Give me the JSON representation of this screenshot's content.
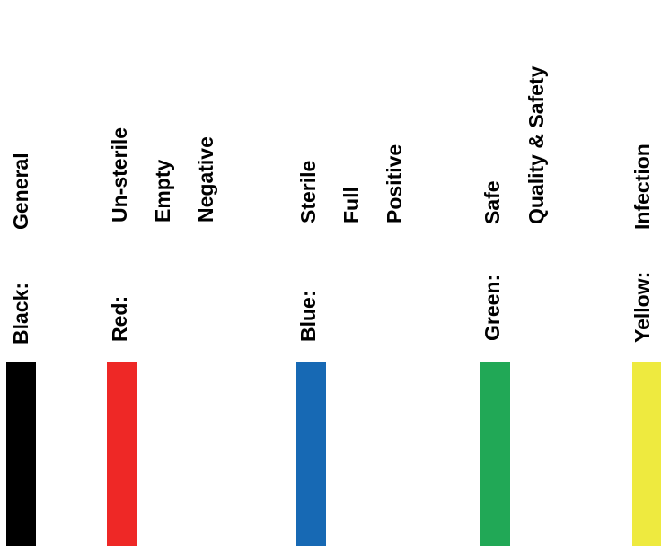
{
  "colors": [
    {
      "label": "Black:",
      "meanings": [
        "General"
      ],
      "swatch": "#000000"
    },
    {
      "label": "Red:",
      "meanings": [
        "Un-sterile",
        "Empty",
        "Negative"
      ],
      "swatch": "#ee2826"
    },
    {
      "label": "Blue:",
      "meanings": [
        "Sterile",
        "Full",
        "Positive"
      ],
      "swatch": "#1769b4"
    },
    {
      "label": "Green:",
      "meanings": [
        "Safe",
        "Quality & Safety"
      ],
      "swatch": "#21a856"
    },
    {
      "label": "Yellow:",
      "meanings": [
        "Infection"
      ],
      "swatch": "#eeea3f"
    }
  ]
}
